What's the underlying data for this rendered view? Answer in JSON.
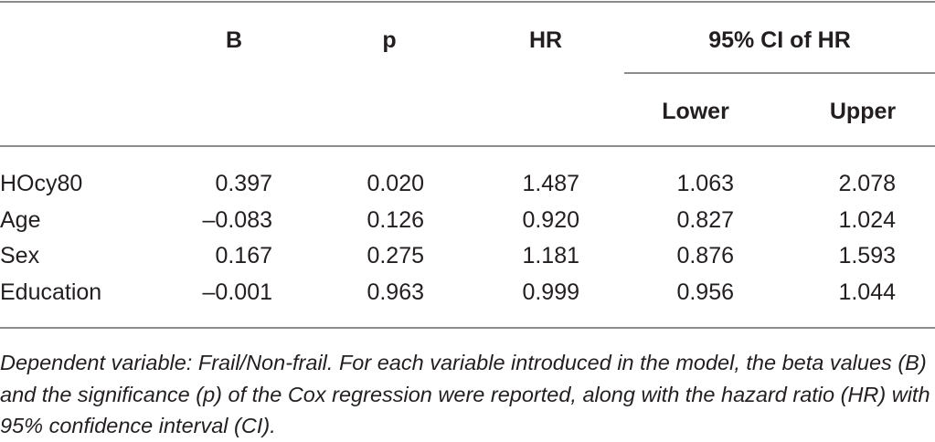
{
  "table": {
    "headers": {
      "b": "B",
      "p": "p",
      "hr": "HR",
      "ci": "95% CI of HR",
      "lower": "Lower",
      "upper": "Upper"
    },
    "rows": [
      {
        "label": "HOcy80",
        "b": "0.397",
        "p": "0.020",
        "hr": "1.487",
        "lower": "1.063",
        "upper": "2.078"
      },
      {
        "label": "Age",
        "b": "–0.083",
        "p": "0.126",
        "hr": "0.920",
        "lower": "0.827",
        "upper": "1.024"
      },
      {
        "label": "Sex",
        "b": "0.167",
        "p": "0.275",
        "hr": "1.181",
        "lower": "0.876",
        "upper": "1.593"
      },
      {
        "label": "Education",
        "b": "–0.001",
        "p": "0.963",
        "hr": "0.999",
        "lower": "0.956",
        "upper": "1.044"
      }
    ]
  },
  "footnote": "Dependent variable: Frail/Non-frail. For each variable introduced in the model, the beta values (B) and the significance (p) of the Cox regression were reported, along with the hazard ratio (HR) with 95% confidence interval (CI)."
}
